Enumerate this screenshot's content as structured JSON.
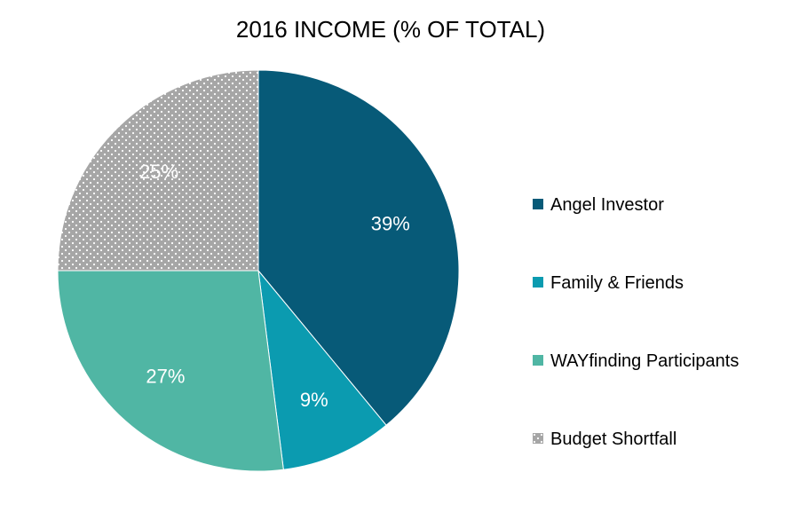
{
  "chart_data": {
    "type": "pie",
    "title": "2016 INCOME (% OF TOTAL)",
    "start_angle_deg": 0,
    "direction": "clockwise",
    "legend_position": "right",
    "slices": [
      {
        "name": "Angel Investor",
        "value": 39,
        "label": "39%",
        "color": "#075a78",
        "pattern": "solid"
      },
      {
        "name": "Family & Friends",
        "value": 9,
        "label": "9%",
        "color": "#0b9bb0",
        "pattern": "solid"
      },
      {
        "name": "WAYfinding Participants",
        "value": 27,
        "label": "27%",
        "color": "#50b6a4",
        "pattern": "solid"
      },
      {
        "name": "Budget Shortfall",
        "value": 25,
        "label": "25%",
        "color": "#a6a6a6",
        "pattern": "dotted"
      }
    ]
  }
}
